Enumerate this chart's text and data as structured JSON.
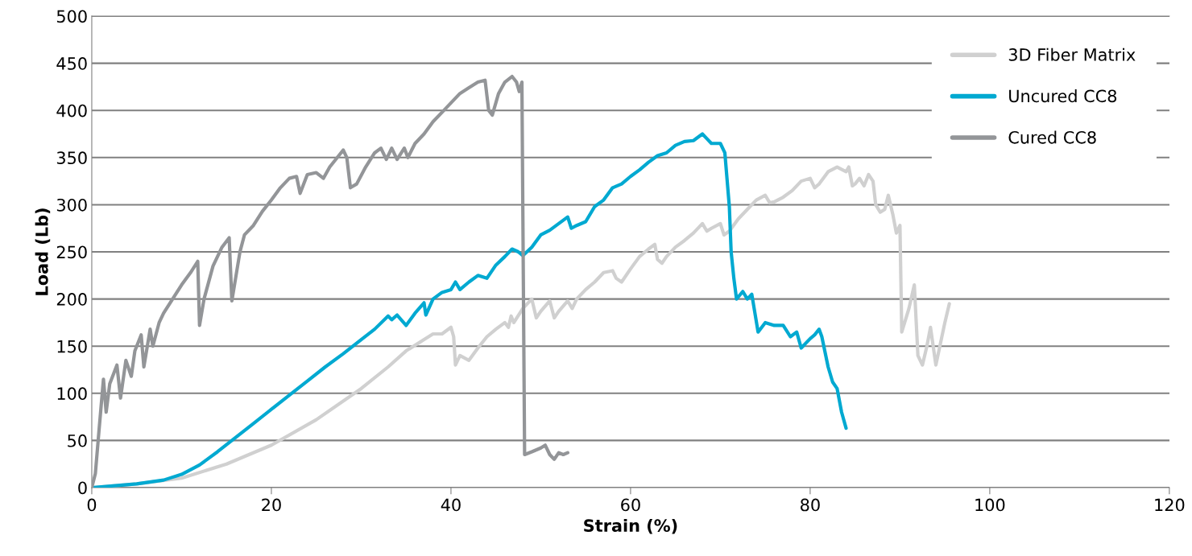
{
  "chart_data": {
    "type": "line",
    "xlabel": "Strain (%)",
    "ylabel": "Load (Lb)",
    "xlim": [
      0,
      120
    ],
    "xticks": [
      0,
      20,
      40,
      60,
      80,
      100,
      120
    ],
    "ylim": [
      0,
      500
    ],
    "yticks": [
      0,
      50,
      100,
      150,
      200,
      250,
      300,
      350,
      400,
      450,
      500
    ],
    "grid": "y",
    "legend": "top right",
    "marker": "none",
    "line_style": "solid",
    "series": [
      {
        "name": "3D Fiber Matrix",
        "color": "#d0d0d0",
        "x": [
          0,
          5,
          10,
          15,
          20,
          25,
          30,
          33,
          35,
          37,
          38,
          39,
          40,
          40.3,
          40.5,
          41,
          42,
          43,
          44,
          45,
          46,
          46.4,
          46.7,
          47,
          48,
          49,
          49.5,
          50,
          51,
          51.5,
          52,
          53,
          53.5,
          54,
          55,
          56,
          57,
          58,
          58.4,
          59,
          60,
          61,
          62,
          62.7,
          63,
          63.5,
          64,
          65,
          66,
          67,
          68,
          68.5,
          69,
          70,
          70.4,
          71,
          72,
          73,
          74,
          75,
          75.5,
          76,
          77,
          78,
          79,
          80,
          80.5,
          81,
          82,
          83,
          84,
          84.3,
          84.7,
          85,
          85.5,
          86,
          86.5,
          87,
          87.3,
          87.8,
          88.3,
          88.7,
          89.2,
          89.6,
          90,
          90.2,
          91,
          91.6,
          92,
          92.5,
          93,
          93.4,
          94,
          95,
          95.5
        ],
        "values": [
          0,
          4,
          10,
          25,
          45,
          72,
          105,
          128,
          145,
          157,
          163,
          163,
          170,
          160,
          130,
          140,
          135,
          148,
          160,
          168,
          175,
          170,
          182,
          175,
          190,
          200,
          180,
          187,
          198,
          180,
          187,
          198,
          190,
          200,
          210,
          218,
          228,
          230,
          222,
          218,
          232,
          245,
          253,
          258,
          242,
          238,
          245,
          255,
          262,
          270,
          280,
          272,
          275,
          280,
          268,
          272,
          285,
          295,
          305,
          310,
          302,
          303,
          308,
          315,
          325,
          328,
          318,
          322,
          335,
          340,
          335,
          340,
          320,
          322,
          328,
          320,
          332,
          325,
          300,
          292,
          295,
          310,
          290,
          270,
          278,
          165,
          190,
          215,
          140,
          130,
          150,
          170,
          130,
          175,
          195
        ]
      },
      {
        "name": "Uncured CC8",
        "color": "#00a9d1",
        "x": [
          0,
          5,
          8,
          10,
          12,
          14,
          16,
          18,
          20,
          22,
          24,
          26,
          28,
          30,
          31.5,
          33,
          33.4,
          34,
          35,
          36,
          37,
          37.2,
          38,
          39,
          40,
          40.5,
          41,
          42,
          43,
          44,
          45,
          46,
          46.8,
          47.5,
          48,
          49,
          50,
          51,
          52,
          53,
          53.4,
          54,
          55,
          56,
          57,
          58,
          59,
          60,
          61,
          62,
          63,
          64,
          65,
          66,
          67,
          68,
          68.5,
          69,
          70,
          70.5,
          71,
          71.2,
          71.5,
          71.8,
          72.5,
          73,
          73.5,
          74.2,
          75,
          76,
          77,
          77.8,
          78.5,
          79,
          80,
          80.5,
          81,
          81.3,
          82,
          82.5,
          83,
          83.5,
          84
        ],
        "values": [
          0,
          4,
          8,
          14,
          24,
          38,
          53,
          68,
          83,
          98,
          113,
          128,
          142,
          157,
          168,
          182,
          178,
          183,
          172,
          185,
          196,
          183,
          200,
          207,
          210,
          218,
          210,
          218,
          225,
          222,
          236,
          245,
          253,
          250,
          246,
          255,
          268,
          273,
          280,
          287,
          275,
          278,
          282,
          298,
          305,
          318,
          322,
          330,
          337,
          345,
          352,
          355,
          363,
          367,
          368,
          375,
          370,
          365,
          365,
          355,
          298,
          250,
          222,
          200,
          208,
          200,
          205,
          165,
          175,
          172,
          172,
          160,
          165,
          148,
          158,
          162,
          168,
          160,
          128,
          112,
          105,
          80,
          63
        ]
      },
      {
        "name": "Cured CC8",
        "color": "#939598",
        "x": [
          0,
          0.4,
          0.8,
          1.3,
          1.6,
          2.0,
          2.8,
          3.2,
          3.8,
          4.4,
          4.8,
          5.5,
          5.8,
          6.5,
          6.8,
          7.5,
          8,
          9,
          10,
          11,
          11.8,
          12.0,
          12.5,
          13.5,
          14.5,
          15.3,
          15.6,
          16.5,
          17.0,
          18,
          19,
          20,
          21,
          22,
          22.8,
          23.2,
          24,
          25,
          25.8,
          26.5,
          27.5,
          28,
          28.4,
          28.8,
          29.5,
          30.5,
          31.5,
          32.2,
          32.8,
          33.4,
          34.0,
          34.8,
          35.2,
          36,
          37,
          38,
          39,
          40,
          41,
          42,
          43,
          43.8,
          44.2,
          44.6,
          45.3,
          46,
          46.8,
          47.3,
          47.6,
          47.9,
          48.2,
          49,
          50,
          50.5,
          51,
          51.5,
          52,
          52.5,
          53
        ],
        "values": [
          0,
          15,
          60,
          115,
          80,
          110,
          130,
          95,
          135,
          118,
          145,
          162,
          128,
          168,
          150,
          175,
          185,
          200,
          215,
          228,
          240,
          172,
          200,
          235,
          255,
          265,
          198,
          250,
          268,
          278,
          293,
          305,
          318,
          328,
          330,
          312,
          332,
          334,
          328,
          340,
          352,
          358,
          350,
          318,
          322,
          340,
          355,
          360,
          348,
          360,
          348,
          360,
          350,
          365,
          375,
          388,
          398,
          408,
          418,
          424,
          430,
          432,
          400,
          395,
          418,
          430,
          436,
          430,
          420,
          430,
          35,
          38,
          42,
          45,
          35,
          30,
          37,
          35,
          37
        ]
      }
    ]
  }
}
